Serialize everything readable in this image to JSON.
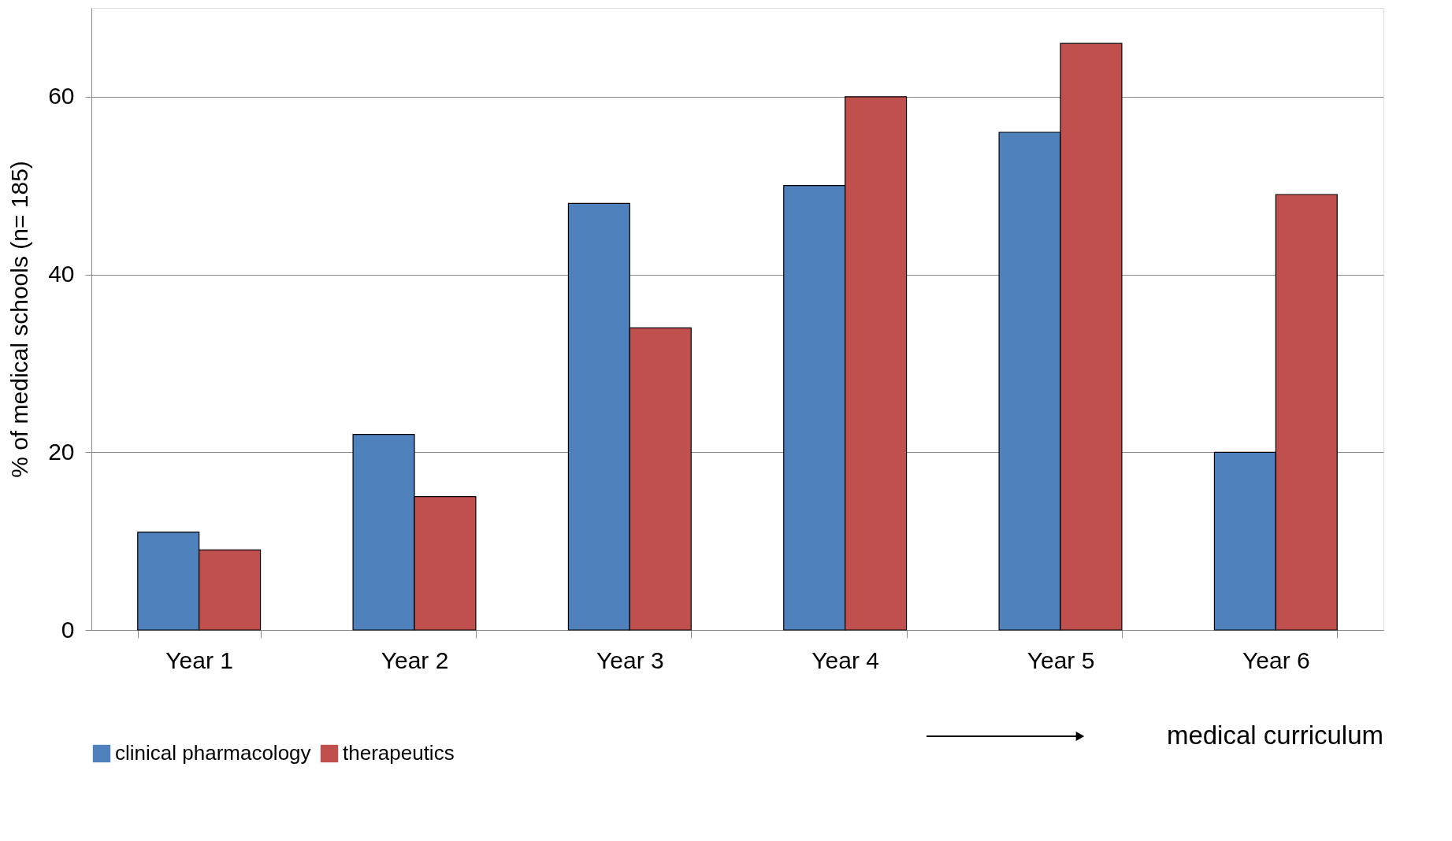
{
  "chart_data": {
    "type": "bar",
    "ylabel": "% of medical schools (n= 185)",
    "xlabel": "medical curriculum",
    "categories": [
      "Year 1",
      "Year 2",
      "Year 3",
      "Year 4",
      "Year 5",
      "Year 6"
    ],
    "series": [
      {
        "name": "clinical pharmacology",
        "color": "#4f81bd",
        "values": [
          11,
          22,
          48,
          50,
          56,
          20
        ]
      },
      {
        "name": "therapeutics",
        "color": "#c0504d",
        "values": [
          9,
          15,
          34,
          60,
          66,
          49
        ]
      }
    ],
    "ylim": [
      0,
      70
    ],
    "yticks": [
      0,
      20,
      40,
      60
    ],
    "grid": "y",
    "legend": "bottom"
  }
}
